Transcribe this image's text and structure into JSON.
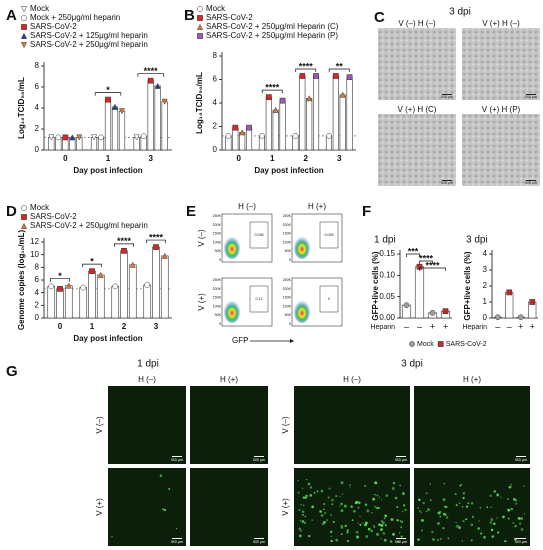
{
  "chart_data": [
    {
      "panel": "A",
      "type": "bar",
      "y_label": "Log₁₀TCID₅₀/mL",
      "x_label": "Day post infection",
      "categories": [
        "0",
        "1",
        "3"
      ],
      "ylim": [
        0,
        8
      ],
      "yticks": [
        0,
        2,
        4,
        6,
        8
      ],
      "limit_line": 1.2,
      "series": [
        {
          "name": "Mock",
          "color": "#ffffff",
          "marker": "triangle-down",
          "values": [
            1.2,
            1.2,
            1.2
          ]
        },
        {
          "name": "Mock + 250μg/ml heparin",
          "color": "#ffffff",
          "marker": "circle",
          "values": [
            1.2,
            1.2,
            1.3
          ]
        },
        {
          "name": "SARS-CoV-2",
          "color": "#d62728",
          "marker": "square",
          "values": [
            1.2,
            4.8,
            6.6
          ]
        },
        {
          "name": "SARS-CoV-2 + 125μg/ml heparin",
          "color": "#1f3f99",
          "marker": "triangle",
          "values": [
            1.2,
            4.1,
            6.1
          ]
        },
        {
          "name": "SARS-CoV-2 + 250μg/ml heparin",
          "color": "#e07b39",
          "marker": "triangle-down",
          "values": [
            1.2,
            3.7,
            4.6
          ]
        }
      ],
      "annotations": [
        {
          "text": "*",
          "at": "1"
        },
        {
          "text": "****",
          "at": "3"
        }
      ]
    },
    {
      "panel": "B",
      "type": "bar",
      "y_label": "Log₁₀TCID₅₀/mL",
      "x_label": "Day post infection",
      "categories": [
        "0",
        "1",
        "2",
        "3"
      ],
      "ylim": [
        0,
        8
      ],
      "yticks": [
        0,
        2,
        4,
        6,
        8
      ],
      "limit_line": 1.2,
      "series": [
        {
          "name": "Mock",
          "color": "#ffffff",
          "marker": "circle",
          "values": [
            1.2,
            1.2,
            1.2,
            1.2
          ]
        },
        {
          "name": "SARS-CoV-2",
          "color": "#d62728",
          "marker": "square",
          "values": [
            1.9,
            4.5,
            6.3,
            6.3
          ]
        },
        {
          "name": "SARS-CoV-2 + 250μg/ml Heparin (C)",
          "color": "#e07b39",
          "marker": "triangle",
          "values": [
            1.5,
            3.4,
            4.4,
            4.7
          ]
        },
        {
          "name": "SARS-CoV-2 + 250μg/ml Heparin (P)",
          "color": "#9b59b6",
          "marker": "square",
          "values": [
            1.9,
            4.2,
            6.3,
            6.2
          ]
        }
      ],
      "annotations": [
        {
          "text": "****",
          "at": "1"
        },
        {
          "text": "****",
          "at": "2"
        },
        {
          "text": "**",
          "at": "3"
        }
      ]
    },
    {
      "panel": "D",
      "type": "bar",
      "y_label": "Genome copies (log₁₀/mL)",
      "x_label": "Day post infection",
      "categories": [
        "0",
        "1",
        "2",
        "3"
      ],
      "ylim": [
        0,
        12
      ],
      "yticks": [
        0,
        2,
        4,
        6,
        8,
        10,
        12
      ],
      "limit_line": 4.6,
      "series": [
        {
          "name": "Mock",
          "color": "#ffffff",
          "marker": "circle",
          "values": [
            5.0,
            4.8,
            5.0,
            5.2
          ]
        },
        {
          "name": "SARS-CoV-2",
          "color": "#d62728",
          "marker": "square",
          "values": [
            4.6,
            7.4,
            10.6,
            11.2
          ]
        },
        {
          "name": "SARS-CoV-2 + 250μg/ml heparin",
          "color": "#e07b39",
          "marker": "triangle",
          "values": [
            5.1,
            6.8,
            8.4,
            9.8
          ]
        }
      ],
      "annotations": [
        {
          "text": "*",
          "at": "0"
        },
        {
          "text": "*",
          "at": "1"
        },
        {
          "text": "****",
          "at": "2"
        },
        {
          "text": "****",
          "at": "3"
        }
      ]
    },
    {
      "panel": "F",
      "type": "bar",
      "title": "1 dpi",
      "y_label": "GFP+live cells (%)",
      "x_label": "Heparin",
      "categories": [
        "–",
        "–",
        "+",
        "+"
      ],
      "ylim": [
        0,
        0.15
      ],
      "yticks": [
        {
          "value": 0,
          "label": "0.00"
        },
        0.05,
        {
          "value": 0.1,
          "label": "0.10"
        },
        0.15
      ],
      "legend": "bottom",
      "series": [
        {
          "name": "Mock",
          "color": "#9e9e9e",
          "marker": "circle",
          "values": [
            0.03,
            null,
            0.012,
            null
          ]
        },
        {
          "name": "SARS-CoV-2",
          "color": "#c62828",
          "marker": "square",
          "values": [
            null,
            0.12,
            null,
            0.016
          ]
        }
      ],
      "annotations": [
        {
          "text": "***",
          "pair": [
            0,
            1
          ]
        },
        {
          "text": "****",
          "pair": [
            1,
            2
          ]
        },
        {
          "text": "****",
          "pair": [
            1,
            3
          ]
        }
      ]
    },
    {
      "type": "bar",
      "title": "3 dpi",
      "y_label": "GFP+live cells (%)",
      "x_label": "Heparin",
      "categories": [
        "–",
        "–",
        "+",
        "+"
      ],
      "ylim": [
        0,
        4
      ],
      "yticks": [
        0,
        1,
        2,
        3,
        4
      ],
      "series": [
        {
          "color": "#9e9e9e",
          "marker": "circle",
          "values": [
            0.05,
            null,
            0.05,
            null
          ]
        },
        {
          "color": "#c62828",
          "marker": "square",
          "values": [
            null,
            1.6,
            null,
            1.0
          ]
        }
      ]
    }
  ],
  "images": {
    "C": {
      "panel": "C",
      "title": "3 dpi",
      "captions": [
        "V (–) H (–)",
        "V (+) H (–)",
        "V (+) H (C)",
        "V (+) H (P)"
      ],
      "scale_bar": "500 μm"
    },
    "E": {
      "panel": "E",
      "columns": [
        "H (–)",
        "H (+)"
      ],
      "rows": [
        "V (–)",
        "V (+)"
      ],
      "gates": [
        "0.038",
        "0.028",
        "0.12",
        "0"
      ],
      "yticks": [
        "250K",
        "200K",
        "150K",
        "100K",
        "50K",
        "0"
      ],
      "x_label": "GFP"
    },
    "G": {
      "panel": "G",
      "groups": [
        "1 dpi",
        "3 dpi"
      ],
      "columns": [
        "H (–)",
        "H (+)"
      ],
      "rows": [
        "V (–)",
        "V (+)"
      ],
      "scale_bar": "500 μm"
    }
  }
}
